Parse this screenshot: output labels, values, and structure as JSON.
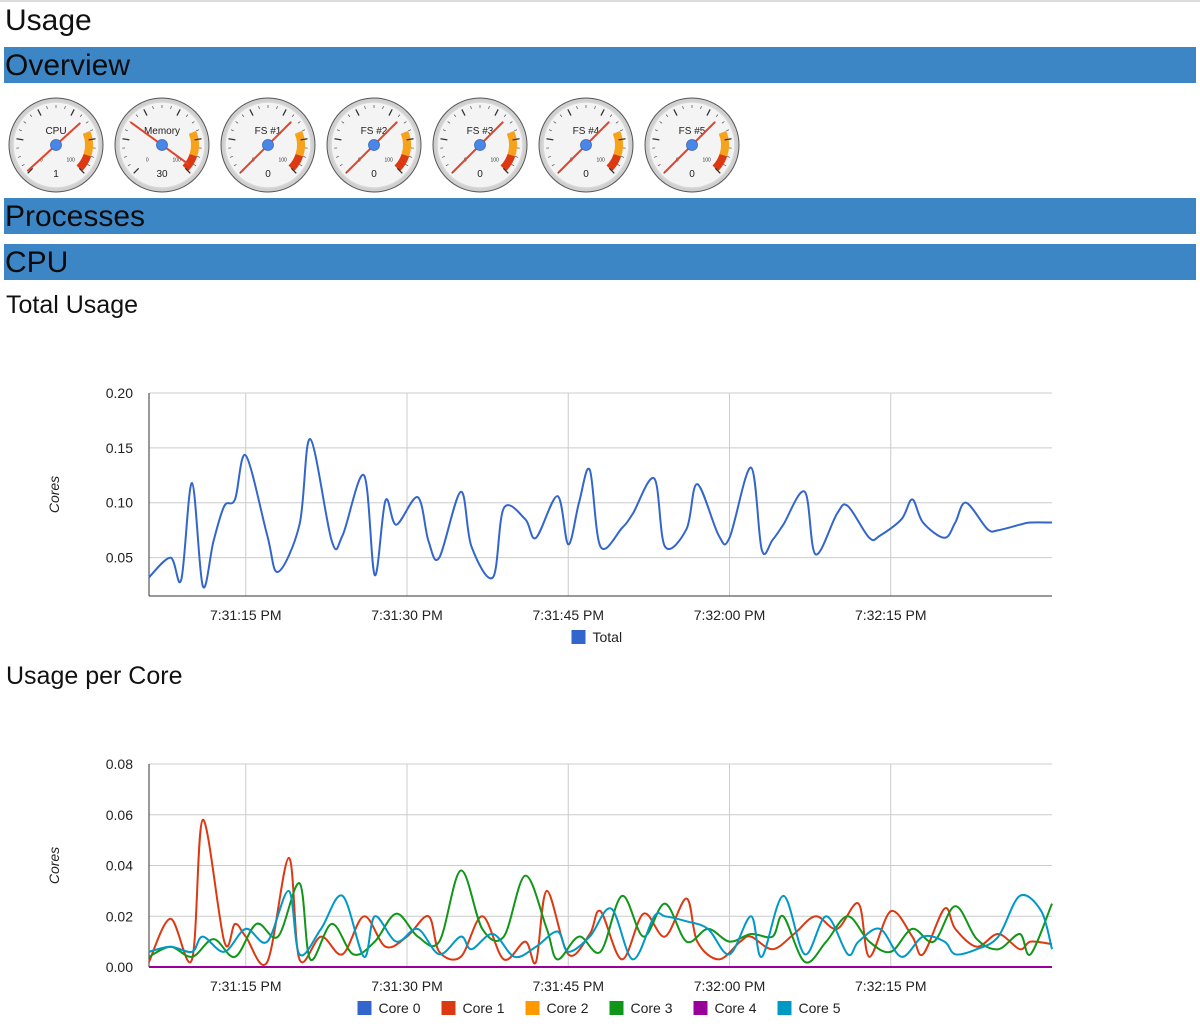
{
  "page": {
    "title": "Usage"
  },
  "sections": {
    "overview": "Overview",
    "processes": "Processes",
    "cpu": "CPU"
  },
  "gauges": [
    {
      "label": "CPU",
      "value": "1"
    },
    {
      "label": "Memory",
      "value": "30"
    },
    {
      "label": "FS #1",
      "value": "0"
    },
    {
      "label": "FS #2",
      "value": "0"
    },
    {
      "label": "FS #3",
      "value": "0"
    },
    {
      "label": "FS #4",
      "value": "0"
    },
    {
      "label": "FS #5",
      "value": "0"
    }
  ],
  "gauge_scale": {
    "min_label": "0",
    "max_label": "100"
  },
  "colors": {
    "section_bar": "#3d86c6",
    "gauge_warning": "#f7a21b",
    "gauge_danger": "#dc3912",
    "needle": "#e0452c",
    "needle_hub": "#4a86e8"
  },
  "charts": {
    "total": {
      "title": "Total Usage"
    },
    "per_core": {
      "title": "Usage per Core"
    }
  },
  "chart_data": [
    {
      "type": "line",
      "title": "Total Usage",
      "xlabel": "",
      "ylabel": "Cores",
      "xlim": [
        "7:31:06 PM",
        "7:32:30 PM"
      ],
      "ylim": [
        0.015,
        0.2
      ],
      "yticks": [
        "0.20",
        "0.15",
        "0.10",
        "0.05"
      ],
      "ytick_values": [
        0.2,
        0.15,
        0.1,
        0.05
      ],
      "xticks": [
        "7:31:15 PM",
        "7:31:30 PM",
        "7:31:45 PM",
        "7:32:00 PM",
        "7:32:15 PM"
      ],
      "grid": true,
      "legend": "bottom",
      "series": [
        {
          "name": "Total",
          "color": "#3366cc",
          "x": [
            "7:31:06 PM",
            "7:31:08 PM",
            "7:31:09 PM",
            "7:31:10 PM",
            "7:31:11 PM",
            "7:31:12 PM",
            "7:31:13 PM",
            "7:31:14 PM",
            "7:31:15 PM",
            "7:31:17 PM",
            "7:31:18 PM",
            "7:31:20 PM",
            "7:31:21 PM",
            "7:31:23 PM",
            "7:31:24 PM",
            "7:31:26 PM",
            "7:31:27 PM",
            "7:31:28 PM",
            "7:31:29 PM",
            "7:31:31 PM",
            "7:31:32 PM",
            "7:31:33 PM",
            "7:31:35 PM",
            "7:31:36 PM",
            "7:31:38 PM",
            "7:31:39 PM",
            "7:31:41 PM",
            "7:31:42 PM",
            "7:31:44 PM",
            "7:31:45 PM",
            "7:31:46 PM",
            "7:31:47 PM",
            "7:31:48 PM",
            "7:31:50 PM",
            "7:31:51 PM",
            "7:31:53 PM",
            "7:31:54 PM",
            "7:31:56 PM",
            "7:31:57 PM",
            "7:31:59 PM",
            "7:32:00 PM",
            "7:32:02 PM",
            "7:32:03 PM",
            "7:32:04 PM",
            "7:32:05 PM",
            "7:32:07 PM",
            "7:32:08 PM",
            "7:32:10 PM",
            "7:32:11 PM",
            "7:32:13 PM",
            "7:32:14 PM",
            "7:32:16 PM",
            "7:32:17 PM",
            "7:32:18 PM",
            "7:32:20 PM",
            "7:32:21 PM",
            "7:32:22 PM",
            "7:32:24 PM",
            "7:32:25 PM",
            "7:32:27 PM",
            "7:32:28 PM",
            "7:32:30 PM"
          ],
          "y": [
            0.032,
            0.05,
            0.03,
            0.118,
            0.024,
            0.065,
            0.097,
            0.103,
            0.143,
            0.07,
            0.037,
            0.08,
            0.158,
            0.065,
            0.07,
            0.125,
            0.034,
            0.102,
            0.08,
            0.105,
            0.065,
            0.05,
            0.11,
            0.06,
            0.032,
            0.095,
            0.085,
            0.068,
            0.106,
            0.062,
            0.1,
            0.13,
            0.06,
            0.077,
            0.09,
            0.122,
            0.06,
            0.076,
            0.117,
            0.07,
            0.068,
            0.132,
            0.057,
            0.066,
            0.08,
            0.11,
            0.053,
            0.09,
            0.097,
            0.068,
            0.07,
            0.085,
            0.103,
            0.082,
            0.068,
            0.082,
            0.1,
            0.076,
            0.075,
            0.08,
            0.082,
            0.082
          ]
        }
      ]
    },
    {
      "type": "line",
      "title": "Usage per Core",
      "xlabel": "",
      "ylabel": "Cores",
      "xlim": [
        "7:31:06 PM",
        "7:32:30 PM"
      ],
      "ylim": [
        0,
        0.08
      ],
      "yticks": [
        "0.08",
        "0.06",
        "0.04",
        "0.02",
        "0.00"
      ],
      "ytick_values": [
        0.08,
        0.06,
        0.04,
        0.02,
        0.0
      ],
      "xticks": [
        "7:31:15 PM",
        "7:31:30 PM",
        "7:31:45 PM",
        "7:32:00 PM",
        "7:32:15 PM"
      ],
      "grid": true,
      "legend": "bottom",
      "series": [
        {
          "name": "Core 0",
          "color": "#3366cc",
          "x": [
            "7:31:06 PM",
            "7:32:30 PM"
          ],
          "y": [
            0.0,
            0.0
          ]
        },
        {
          "name": "Core 1",
          "color": "#dc3912",
          "x": [
            "7:31:06 PM",
            "7:31:08 PM",
            "7:31:10 PM",
            "7:31:11 PM",
            "7:31:13 PM",
            "7:31:14 PM",
            "7:31:15 PM",
            "7:31:17 PM",
            "7:31:19 PM",
            "7:31:20 PM",
            "7:31:22 PM",
            "7:31:24 PM",
            "7:31:26 PM",
            "7:31:28 PM",
            "7:31:30 PM",
            "7:31:32 PM",
            "7:31:33 PM",
            "7:31:35 PM",
            "7:31:37 PM",
            "7:31:39 PM",
            "7:31:41 PM",
            "7:31:42 PM",
            "7:31:43 PM",
            "7:31:45 PM",
            "7:31:47 PM",
            "7:31:48 PM",
            "7:31:50 PM",
            "7:31:52 PM",
            "7:31:54 PM",
            "7:31:56 PM",
            "7:31:57 PM",
            "7:31:59 PM",
            "7:32:01 PM",
            "7:32:02 PM",
            "7:32:04 PM",
            "7:32:06 PM",
            "7:32:08 PM",
            "7:32:10 PM",
            "7:32:12 PM",
            "7:32:13 PM",
            "7:32:15 PM",
            "7:32:17 PM",
            "7:32:18 PM",
            "7:32:20 PM",
            "7:32:21 PM",
            "7:32:23 PM",
            "7:32:25 PM",
            "7:32:27 PM",
            "7:32:28 PM",
            "7:32:30 PM"
          ],
          "y": [
            0.002,
            0.019,
            0.003,
            0.058,
            0.01,
            0.017,
            0.012,
            0.002,
            0.043,
            0.003,
            0.012,
            0.005,
            0.02,
            0.008,
            0.012,
            0.02,
            0.006,
            0.004,
            0.02,
            0.003,
            0.01,
            0.002,
            0.03,
            0.005,
            0.013,
            0.022,
            0.003,
            0.021,
            0.012,
            0.027,
            0.01,
            0.003,
            0.01,
            0.012,
            0.007,
            0.013,
            0.02,
            0.015,
            0.025,
            0.004,
            0.022,
            0.012,
            0.005,
            0.023,
            0.015,
            0.008,
            0.013,
            0.007,
            0.01,
            0.009
          ]
        },
        {
          "name": "Core 2",
          "color": "#ff9900",
          "x": [
            "7:31:06 PM",
            "7:32:30 PM"
          ],
          "y": [
            0.0,
            0.0
          ]
        },
        {
          "name": "Core 3",
          "color": "#109618",
          "x": [
            "7:31:06 PM",
            "7:31:08 PM",
            "7:31:10 PM",
            "7:31:12 PM",
            "7:31:14 PM",
            "7:31:16 PM",
            "7:31:18 PM",
            "7:31:20 PM",
            "7:31:21 PM",
            "7:31:23 PM",
            "7:31:25 PM",
            "7:31:27 PM",
            "7:31:29 PM",
            "7:31:31 PM",
            "7:31:33 PM",
            "7:31:35 PM",
            "7:31:37 PM",
            "7:31:39 PM",
            "7:31:41 PM",
            "7:31:43 PM",
            "7:31:44 PM",
            "7:31:46 PM",
            "7:31:48 PM",
            "7:31:50 PM",
            "7:31:52 PM",
            "7:31:54 PM",
            "7:31:56 PM",
            "7:31:58 PM",
            "7:32:00 PM",
            "7:32:02 PM",
            "7:32:04 PM",
            "7:32:05 PM",
            "7:32:07 PM",
            "7:32:09 PM",
            "7:32:11 PM",
            "7:32:13 PM",
            "7:32:15 PM",
            "7:32:17 PM",
            "7:32:19 PM",
            "7:32:21 PM",
            "7:32:23 PM",
            "7:32:25 PM",
            "7:32:27 PM",
            "7:32:28 PM",
            "7:32:30 PM"
          ],
          "y": [
            0.004,
            0.008,
            0.004,
            0.011,
            0.004,
            0.017,
            0.012,
            0.033,
            0.003,
            0.017,
            0.005,
            0.01,
            0.021,
            0.012,
            0.01,
            0.038,
            0.015,
            0.012,
            0.036,
            0.015,
            0.003,
            0.012,
            0.006,
            0.028,
            0.012,
            0.025,
            0.01,
            0.015,
            0.01,
            0.013,
            0.012,
            0.02,
            0.002,
            0.01,
            0.02,
            0.01,
            0.006,
            0.015,
            0.01,
            0.024,
            0.011,
            0.007,
            0.013,
            0.005,
            0.025
          ]
        },
        {
          "name": "Core 4",
          "color": "#990099",
          "x": [
            "7:31:06 PM",
            "7:32:30 PM"
          ],
          "y": [
            0.0,
            0.0
          ]
        },
        {
          "name": "Core 5",
          "color": "#0099c6",
          "x": [
            "7:31:06 PM",
            "7:31:08 PM",
            "7:31:10 PM",
            "7:31:11 PM",
            "7:31:13 PM",
            "7:31:15 PM",
            "7:31:17 PM",
            "7:31:19 PM",
            "7:31:20 PM",
            "7:31:22 PM",
            "7:31:24 PM",
            "7:31:26 PM",
            "7:31:27 PM",
            "7:31:29 PM",
            "7:31:31 PM",
            "7:31:33 PM",
            "7:31:35 PM",
            "7:31:36 PM",
            "7:31:38 PM",
            "7:31:40 PM",
            "7:31:42 PM",
            "7:31:44 PM",
            "7:31:45 PM",
            "7:31:47 PM",
            "7:31:49 PM",
            "7:31:51 PM",
            "7:31:53 PM",
            "7:31:54 PM",
            "7:31:56 PM",
            "7:31:58 PM",
            "7:32:00 PM",
            "7:32:02 PM",
            "7:32:03 PM",
            "7:32:05 PM",
            "7:32:07 PM",
            "7:32:09 PM",
            "7:32:11 PM",
            "7:32:12 PM",
            "7:32:14 PM",
            "7:32:16 PM",
            "7:32:18 PM",
            "7:32:20 PM",
            "7:32:21 PM",
            "7:32:23 PM",
            "7:32:25 PM",
            "7:32:27 PM",
            "7:32:29 PM",
            "7:32:30 PM"
          ],
          "y": [
            0.006,
            0.008,
            0.006,
            0.012,
            0.006,
            0.015,
            0.01,
            0.03,
            0.005,
            0.015,
            0.028,
            0.004,
            0.02,
            0.01,
            0.015,
            0.005,
            0.012,
            0.007,
            0.013,
            0.004,
            0.008,
            0.014,
            0.006,
            0.012,
            0.023,
            0.003,
            0.02,
            0.02,
            0.018,
            0.015,
            0.005,
            0.02,
            0.004,
            0.028,
            0.005,
            0.02,
            0.005,
            0.01,
            0.015,
            0.004,
            0.012,
            0.01,
            0.005,
            0.007,
            0.012,
            0.028,
            0.022,
            0.007
          ]
        }
      ]
    }
  ]
}
